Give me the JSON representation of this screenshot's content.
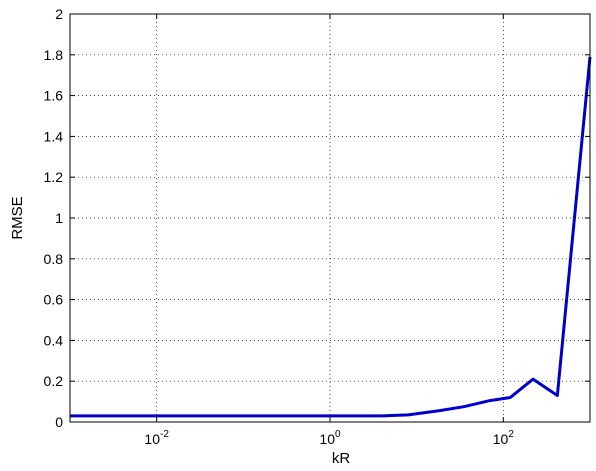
{
  "chart_data": {
    "type": "line",
    "title": "",
    "xlabel": "kR",
    "ylabel": "RMSE",
    "xscale": "log",
    "xlim": [
      0.001,
      1000
    ],
    "ylim": [
      0,
      2
    ],
    "grid": true,
    "x_ticks": [
      {
        "value": 0.01,
        "base": "10",
        "exp": "-2"
      },
      {
        "value": 1,
        "base": "10",
        "exp": "0"
      },
      {
        "value": 100,
        "base": "10",
        "exp": "2"
      }
    ],
    "y_ticks": [
      {
        "value": 0,
        "label": "0"
      },
      {
        "value": 0.2,
        "label": "0.2"
      },
      {
        "value": 0.4,
        "label": "0.4"
      },
      {
        "value": 0.6,
        "label": "0.6"
      },
      {
        "value": 0.8,
        "label": "0.8"
      },
      {
        "value": 1.0,
        "label": "1"
      },
      {
        "value": 1.2,
        "label": "1.2"
      },
      {
        "value": 1.4,
        "label": "1.4"
      },
      {
        "value": 1.6,
        "label": "1.6"
      },
      {
        "value": 1.8,
        "label": "1.8"
      },
      {
        "value": 2.0,
        "label": "2"
      }
    ],
    "series": [
      {
        "color": "#0000cc",
        "x": [
          0.001,
          0.01,
          0.1,
          1,
          4,
          8,
          18,
          35,
          70,
          120,
          220,
          420,
          1000
        ],
        "y": [
          0.03,
          0.03,
          0.03,
          0.03,
          0.03,
          0.035,
          0.055,
          0.075,
          0.105,
          0.12,
          0.21,
          0.13,
          1.79
        ]
      }
    ]
  }
}
